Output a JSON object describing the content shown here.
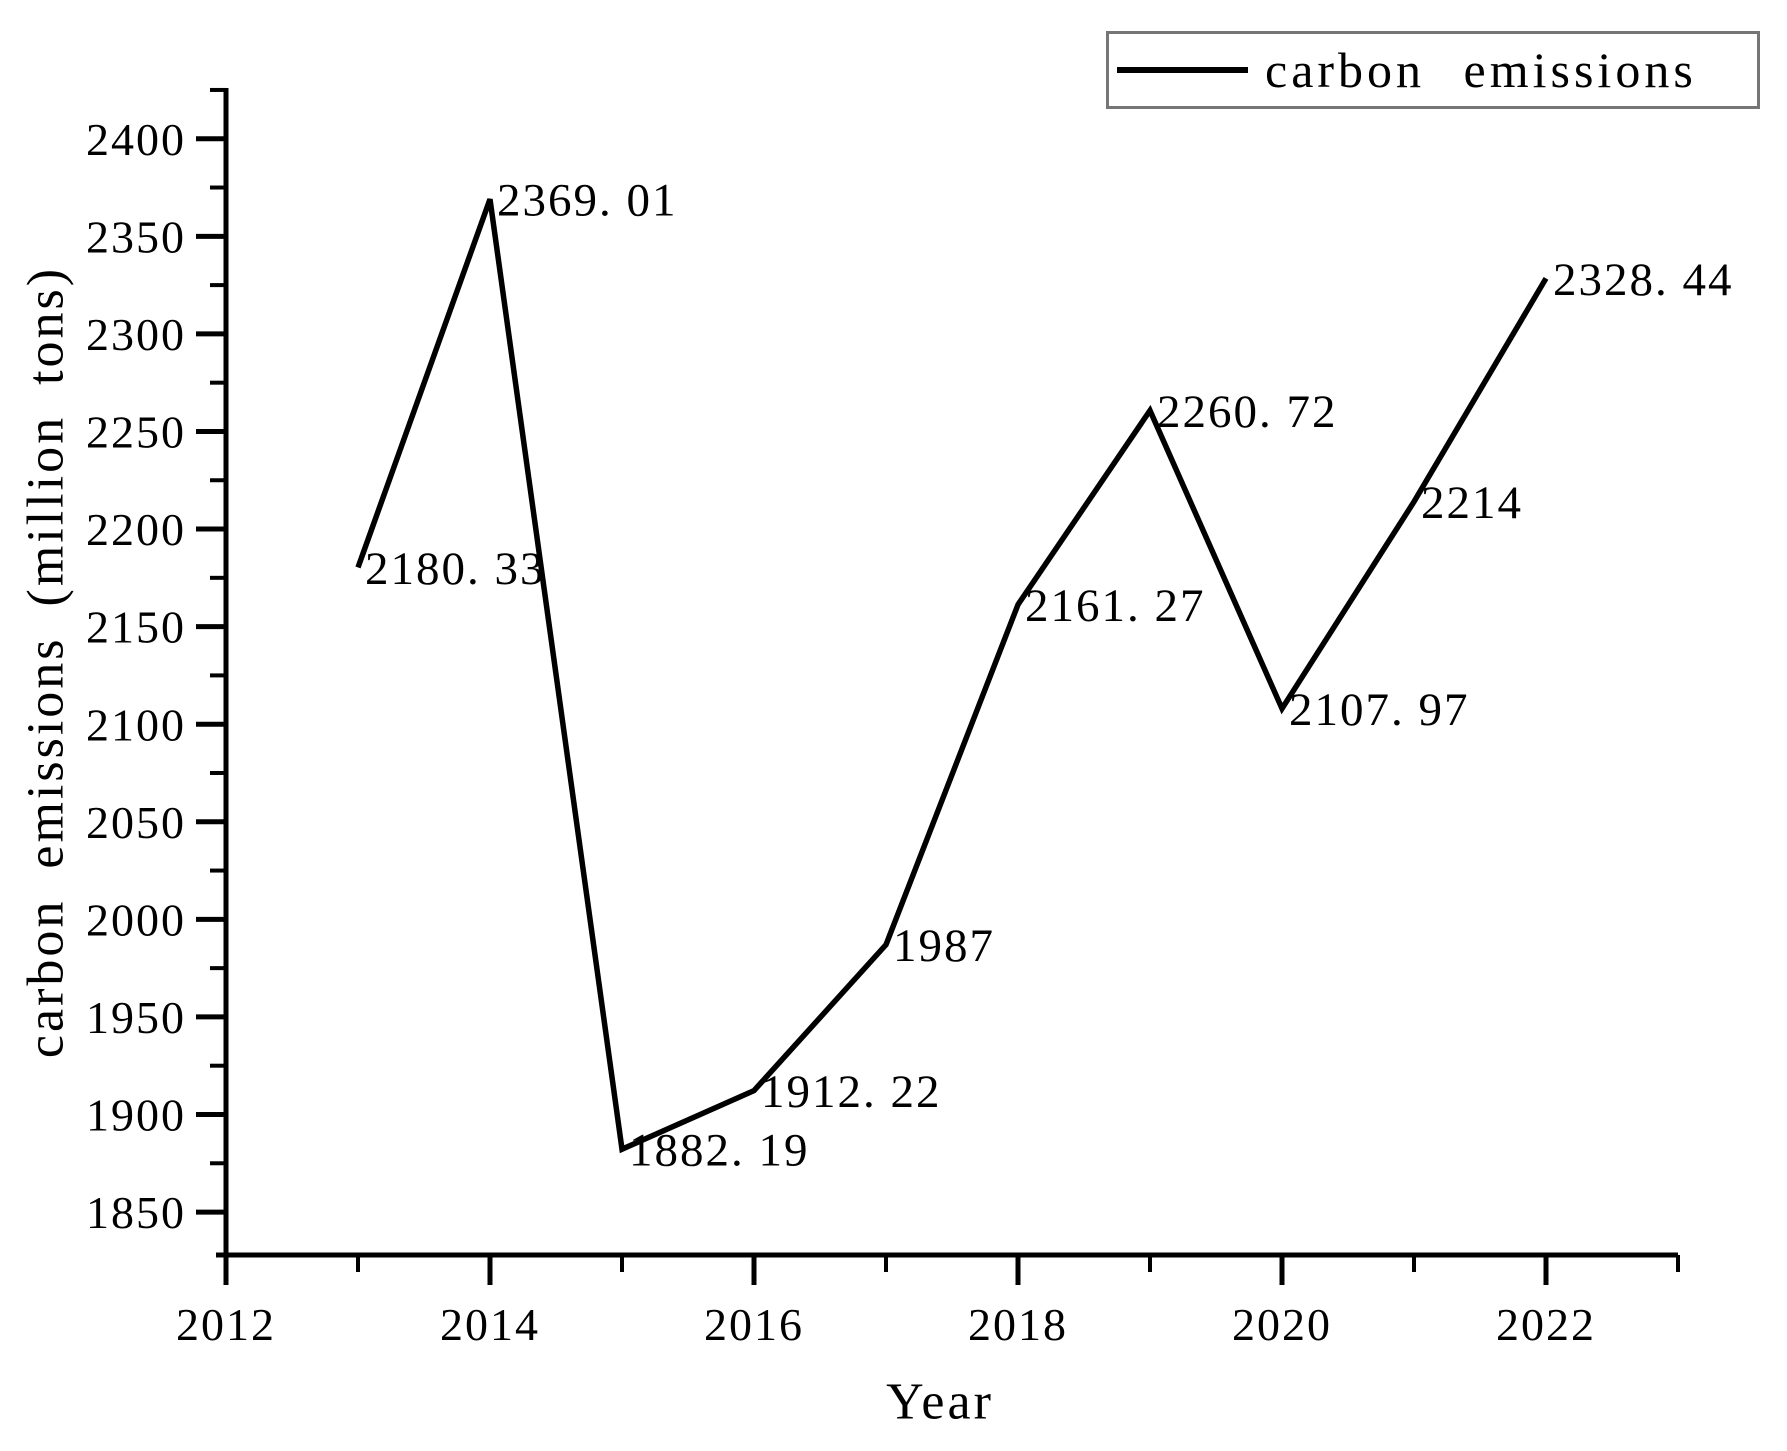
{
  "figure": {
    "background_color": "#ffffff",
    "legend": {
      "label": "carbon emissions",
      "line_color": "#000000",
      "border_color": "#767676",
      "position": "upper right"
    }
  },
  "chart_data": {
    "type": "line",
    "title": "",
    "xlabel": "Year",
    "ylabel": "carbon emissions (million tons)",
    "x": [
      2013,
      2014,
      2015,
      2016,
      2017,
      2018,
      2019,
      2020,
      2021,
      2022
    ],
    "series": [
      {
        "name": "carbon emissions",
        "color": "#000000",
        "values": [
          2180.33,
          2369.01,
          1882.19,
          1912.22,
          1987,
          2161.27,
          2260.72,
          2107.97,
          2214,
          2328.44
        ]
      }
    ],
    "point_labels": [
      "2180. 33",
      "2369. 01",
      "1882. 19",
      "1912. 22",
      "1987",
      "2161. 27",
      "2260. 72",
      "2107. 97",
      "2214",
      "2328. 44"
    ],
    "xticks": [
      2012,
      2014,
      2016,
      2018,
      2020,
      2022
    ],
    "xtick_labels": [
      "2012",
      "2014",
      "2016",
      "2018",
      "2020",
      "2022"
    ],
    "xminor": [
      2013,
      2015,
      2017,
      2019,
      2021,
      2023
    ],
    "yticks": [
      1850,
      1900,
      1950,
      2000,
      2050,
      2100,
      2150,
      2200,
      2250,
      2300,
      2350,
      2400
    ],
    "ytick_labels": [
      "1850",
      "1900",
      "1950",
      "2000",
      "2050",
      "2100",
      "2150",
      "2200",
      "2250",
      "2300",
      "2350",
      "2400"
    ],
    "yminor": [
      1875,
      1925,
      1975,
      2025,
      2075,
      2125,
      2175,
      2225,
      2275,
      2325,
      2375,
      2425
    ],
    "xlim": [
      2012,
      2023
    ],
    "ylim": [
      1828,
      2426
    ],
    "grid": false,
    "legend_position": "upper right",
    "axis_color": "#000000"
  }
}
